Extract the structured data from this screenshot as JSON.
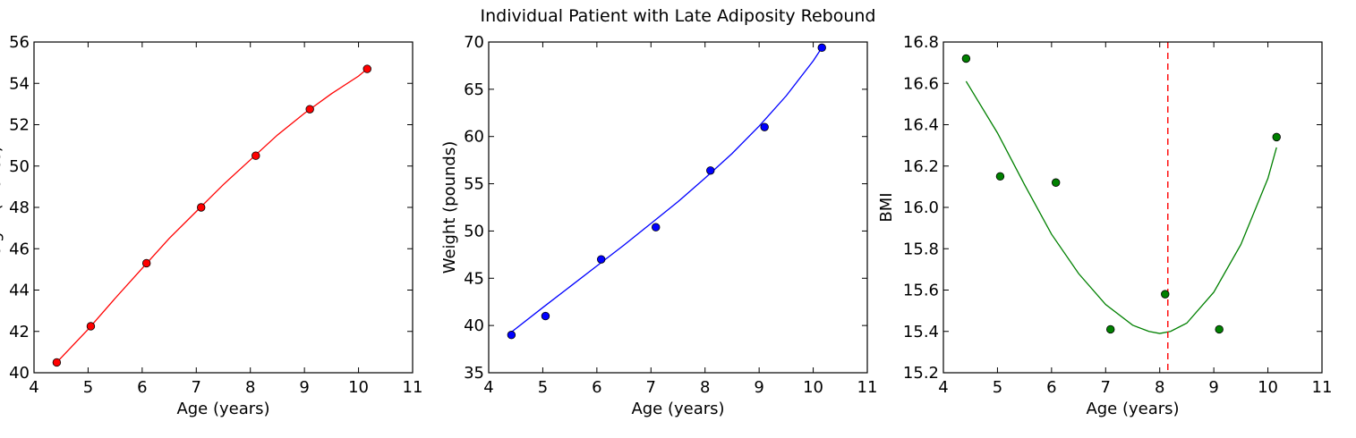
{
  "figure_title": "Individual Patient with Late Adiposity Rebound",
  "chart_data": [
    {
      "type": "line",
      "title": "",
      "xlabel": "Age (years)",
      "ylabel": "Height (inches)",
      "xlim": [
        4,
        11
      ],
      "ylim": [
        40,
        56
      ],
      "xticks": [
        4,
        5,
        6,
        7,
        8,
        9,
        10,
        11
      ],
      "yticks": [
        40,
        42,
        44,
        46,
        48,
        50,
        52,
        54,
        56
      ],
      "color": "#ff0000",
      "points": {
        "x": [
          4.42,
          5.05,
          6.08,
          7.09,
          8.1,
          9.1,
          10.16
        ],
        "y": [
          40.5,
          42.25,
          45.3,
          48.0,
          50.5,
          52.75,
          54.7
        ]
      },
      "fit": {
        "x": [
          4.42,
          5.0,
          5.5,
          6.0,
          6.5,
          7.0,
          7.5,
          8.0,
          8.5,
          9.0,
          9.5,
          10.0,
          10.16
        ],
        "y": [
          40.5,
          42.1,
          43.6,
          45.05,
          46.5,
          47.8,
          49.1,
          50.3,
          51.5,
          52.55,
          53.5,
          54.35,
          54.7
        ]
      }
    },
    {
      "type": "line",
      "title": "",
      "xlabel": "Age (years)",
      "ylabel": "Weight (pounds)",
      "xlim": [
        4,
        11
      ],
      "ylim": [
        35,
        70
      ],
      "xticks": [
        4,
        5,
        6,
        7,
        8,
        9,
        10,
        11
      ],
      "yticks": [
        35,
        40,
        45,
        50,
        55,
        60,
        65,
        70
      ],
      "color": "#0000ff",
      "points": {
        "x": [
          4.42,
          5.05,
          6.08,
          7.09,
          8.1,
          9.1,
          10.16
        ],
        "y": [
          39.0,
          41.0,
          47.0,
          50.4,
          56.4,
          61.0,
          69.4
        ]
      },
      "fit": {
        "x": [
          4.42,
          5.0,
          5.5,
          6.0,
          6.5,
          7.0,
          7.5,
          8.0,
          8.5,
          9.0,
          9.5,
          10.0,
          10.16
        ],
        "y": [
          39.3,
          41.9,
          44.1,
          46.3,
          48.5,
          50.8,
          53.1,
          55.6,
          58.2,
          61.1,
          64.3,
          68.0,
          69.4
        ]
      }
    },
    {
      "type": "scatter",
      "title": "",
      "xlabel": "Age (years)",
      "ylabel": "BMI",
      "xlim": [
        4,
        11
      ],
      "ylim": [
        15.2,
        16.8
      ],
      "xticks": [
        4,
        5,
        6,
        7,
        8,
        9,
        10,
        11
      ],
      "yticks": [
        15.2,
        15.4,
        15.6,
        15.8,
        16.0,
        16.2,
        16.4,
        16.6,
        16.8
      ],
      "color": "#008000",
      "points": {
        "x": [
          4.42,
          5.05,
          6.08,
          7.09,
          8.1,
          9.1,
          10.16
        ],
        "y": [
          16.72,
          16.15,
          16.12,
          15.41,
          15.58,
          15.41,
          16.34
        ]
      },
      "fit": {
        "x": [
          4.42,
          5.0,
          5.5,
          6.0,
          6.5,
          7.0,
          7.5,
          7.8,
          8.0,
          8.2,
          8.5,
          9.0,
          9.5,
          10.0,
          10.16
        ],
        "y": [
          16.61,
          16.36,
          16.11,
          15.87,
          15.68,
          15.53,
          15.43,
          15.4,
          15.39,
          15.4,
          15.44,
          15.59,
          15.82,
          16.14,
          16.29
        ]
      },
      "vline": {
        "x": 8.15,
        "color": "#ff0000",
        "style": "dashed"
      }
    }
  ]
}
